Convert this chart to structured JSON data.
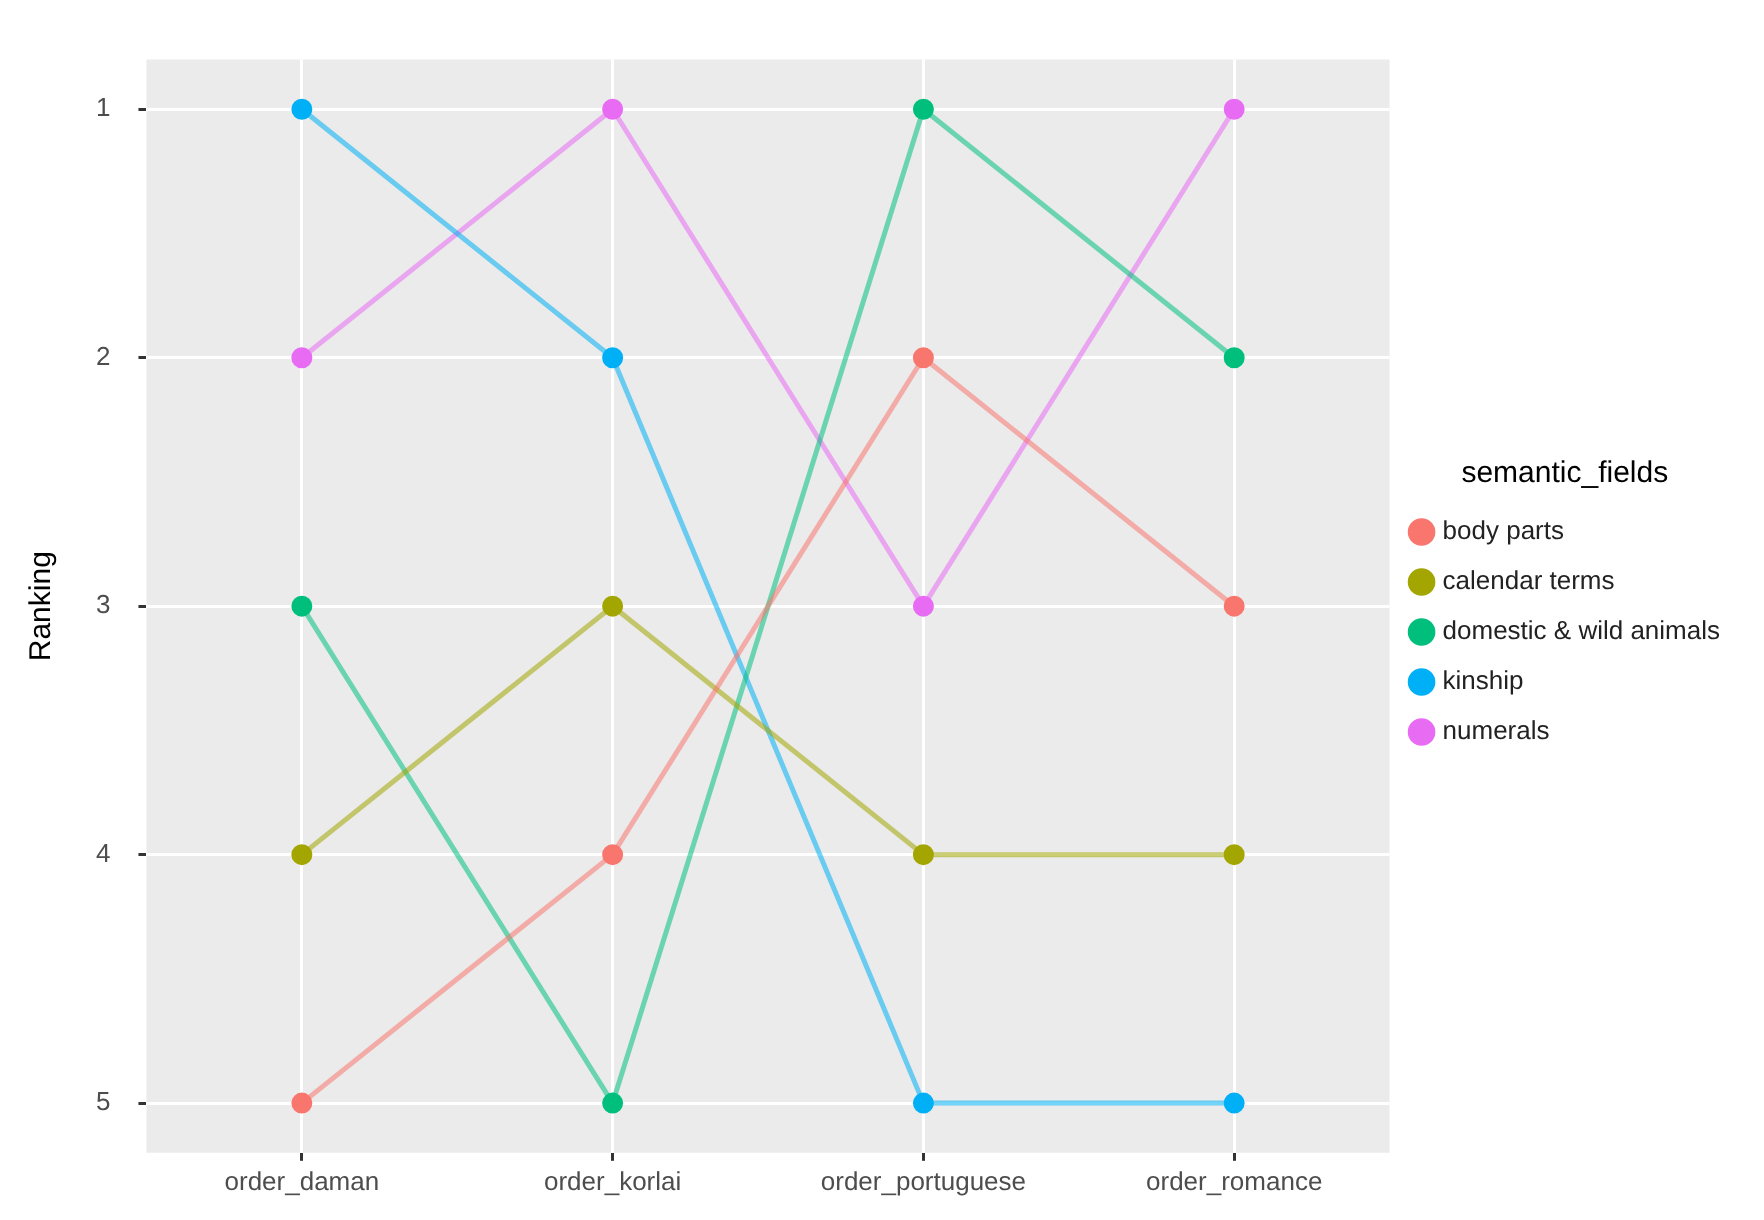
{
  "chart_data": {
    "type": "line",
    "ylabel": "Ranking",
    "legend_title": "semantic_fields",
    "categories": [
      "order_daman",
      "order_korlai",
      "order_portuguese",
      "order_romance"
    ],
    "ylim": [
      5.2,
      0.8
    ],
    "yticks": [
      1,
      2,
      3,
      4,
      5
    ],
    "grid": true,
    "legend": "right",
    "marker": "circle",
    "line_style": "solid",
    "series": [
      {
        "name": "body parts",
        "color": "#f8766d",
        "values": [
          5,
          4,
          2,
          3
        ]
      },
      {
        "name": "calendar terms",
        "color": "#a3a500",
        "values": [
          4,
          3,
          4,
          4
        ]
      },
      {
        "name": "domestic & wild animals",
        "color": "#00bf7d",
        "values": [
          3,
          5,
          1,
          2
        ]
      },
      {
        "name": "kinship",
        "color": "#00b0f6",
        "values": [
          1,
          2,
          5,
          5
        ]
      },
      {
        "name": "numerals",
        "color": "#e76bf3",
        "values": [
          2,
          1,
          3,
          1
        ]
      }
    ]
  }
}
